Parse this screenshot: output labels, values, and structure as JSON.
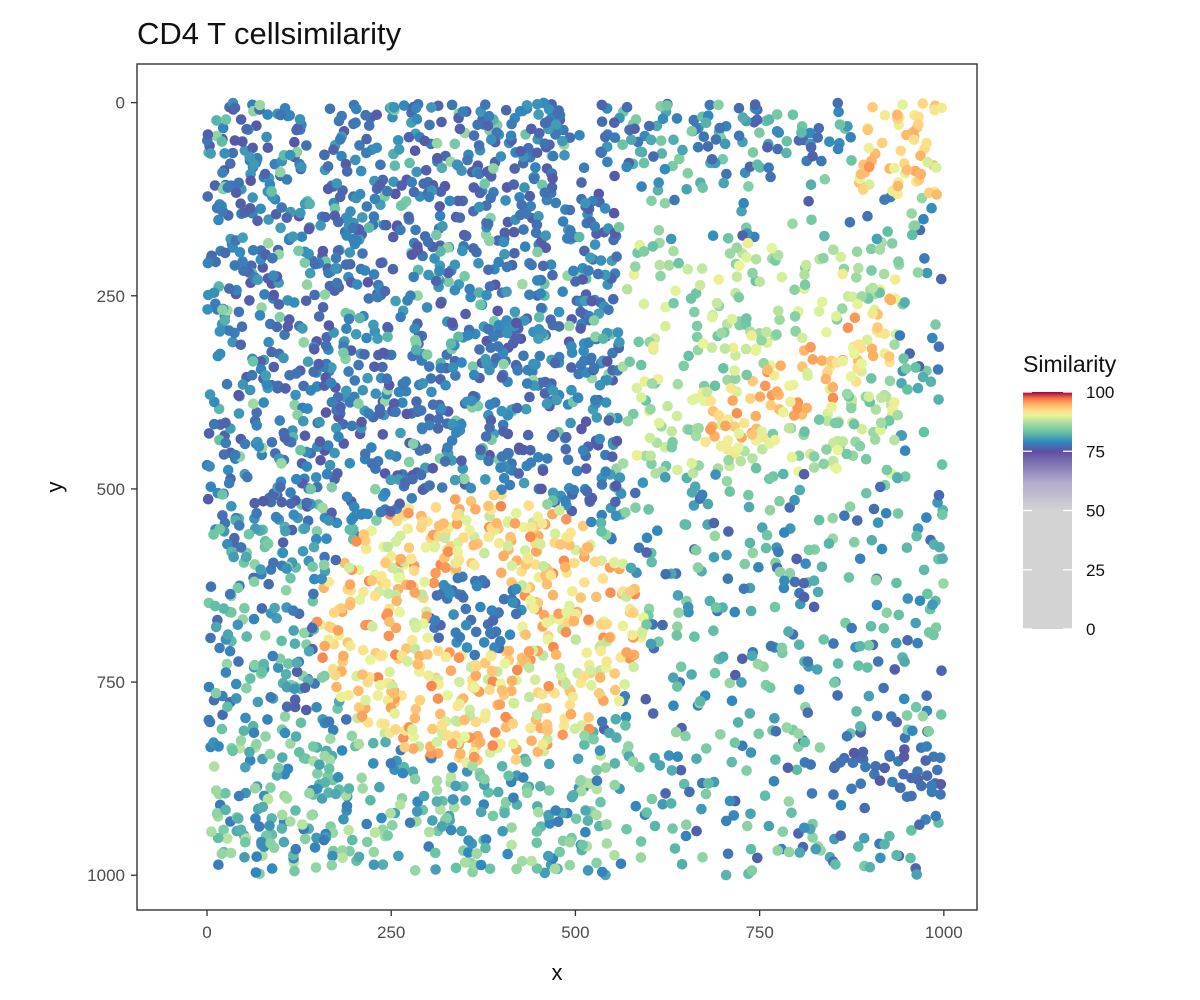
{
  "chart_data": {
    "type": "scatter",
    "title": "CD4 T cellsimilarity",
    "xlabel": "x",
    "ylabel": "y",
    "xlim": [
      -95,
      1045
    ],
    "ylim": [
      -50,
      1045
    ],
    "y_reversed": true,
    "x_ticks": [
      0,
      250,
      500,
      750,
      1000
    ],
    "x_tick_labels": [
      "0",
      "250",
      "500",
      "750",
      "1000"
    ],
    "y_ticks": [
      0,
      250,
      500,
      750,
      1000
    ],
    "y_tick_labels": [
      "0",
      "250",
      "500",
      "750",
      "1000"
    ],
    "grid": false,
    "color_variable": "Similarity",
    "legend": {
      "title": "Similarity",
      "placement": "right",
      "range": [
        0,
        100
      ],
      "ticks": [
        0,
        25,
        50,
        75,
        100
      ],
      "tick_labels": [
        "0",
        "25",
        "50",
        "75",
        "100"
      ],
      "stops": [
        {
          "value": 0,
          "color": "#d3d3d3"
        },
        {
          "value": 50,
          "color": "#d3d3d3"
        },
        {
          "value": 62,
          "color": "#b3aacc"
        },
        {
          "value": 75,
          "color": "#5e4fa2"
        },
        {
          "value": 79,
          "color": "#3288bd"
        },
        {
          "value": 83,
          "color": "#66c2a5"
        },
        {
          "value": 87,
          "color": "#abdda4"
        },
        {
          "value": 90,
          "color": "#e6f598"
        },
        {
          "value": 92,
          "color": "#fee08b"
        },
        {
          "value": 95,
          "color": "#fdae61"
        },
        {
          "value": 97.5,
          "color": "#f46d43"
        },
        {
          "value": 100,
          "color": "#9e0142"
        }
      ]
    },
    "point_count_approx": 3500,
    "similarity_regions": [
      {
        "region": "upper-left quadrant",
        "x": [
          0,
          560
        ],
        "y": [
          0,
          540
        ],
        "similarity": 77
      },
      {
        "region": "central dark core",
        "x": [
          310,
          420
        ],
        "y": [
          600,
          720
        ],
        "similarity": 77
      },
      {
        "region": "ring around core",
        "x": [
          160,
          600
        ],
        "y": [
          520,
          840
        ],
        "similarity": 92
      },
      {
        "region": "upper-right corner",
        "x": [
          880,
          960
        ],
        "y": [
          0,
          120
        ],
        "similarity": 93
      },
      {
        "region": "diagonal band",
        "x": [
          680,
          920
        ],
        "y": [
          320,
          460
        ],
        "similarity": 92
      },
      {
        "region": "right middle band",
        "x": [
          560,
          940
        ],
        "y": [
          180,
          480
        ],
        "similarity": 86
      },
      {
        "region": "top strip",
        "x": [
          0,
          1000
        ],
        "y": [
          0,
          80
        ],
        "similarity": 80
      },
      {
        "region": "lower right sparse",
        "x": [
          560,
          1000
        ],
        "y": [
          480,
          1000
        ],
        "similarity": 80
      },
      {
        "region": "lower right dark cluster",
        "x": [
          860,
          1000
        ],
        "y": [
          820,
          900
        ],
        "similarity": 76
      }
    ]
  }
}
